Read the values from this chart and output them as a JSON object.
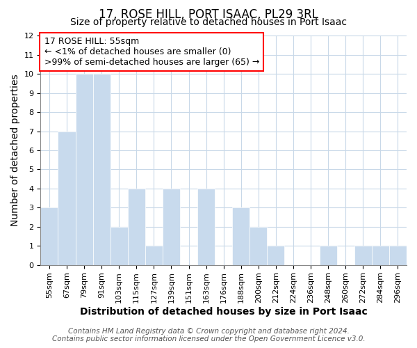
{
  "title": "17, ROSE HILL, PORT ISAAC, PL29 3RL",
  "subtitle": "Size of property relative to detached houses in Port Isaac",
  "xlabel": "Distribution of detached houses by size in Port Isaac",
  "ylabel": "Number of detached properties",
  "bar_color": "#c8daed",
  "bar_edge_color": "#c8daed",
  "categories": [
    "55sqm",
    "67sqm",
    "79sqm",
    "91sqm",
    "103sqm",
    "115sqm",
    "127sqm",
    "139sqm",
    "151sqm",
    "163sqm",
    "176sqm",
    "188sqm",
    "200sqm",
    "212sqm",
    "224sqm",
    "236sqm",
    "248sqm",
    "260sqm",
    "272sqm",
    "284sqm",
    "296sqm"
  ],
  "values": [
    3,
    7,
    10,
    10,
    2,
    4,
    1,
    4,
    0,
    4,
    0,
    3,
    2,
    1,
    0,
    0,
    1,
    0,
    1,
    1,
    1
  ],
  "ylim": [
    0,
    12
  ],
  "yticks": [
    0,
    1,
    2,
    3,
    4,
    5,
    6,
    7,
    8,
    9,
    10,
    11,
    12
  ],
  "annotation_line1": "17 ROSE HILL: 55sqm",
  "annotation_line2": "← <1% of detached houses are smaller (0)",
  "annotation_line3": ">99% of semi-detached houses are larger (65) →",
  "annotation_box_color": "white",
  "annotation_box_edge_color": "red",
  "footer_line1": "Contains HM Land Registry data © Crown copyright and database right 2024.",
  "footer_line2": "Contains public sector information licensed under the Open Government Licence v3.0.",
  "background_color": "white",
  "grid_color": "#c8d8e8",
  "title_fontsize": 12,
  "subtitle_fontsize": 10,
  "axis_label_fontsize": 10,
  "tick_fontsize": 8,
  "annotation_fontsize": 9,
  "footer_fontsize": 7.5
}
